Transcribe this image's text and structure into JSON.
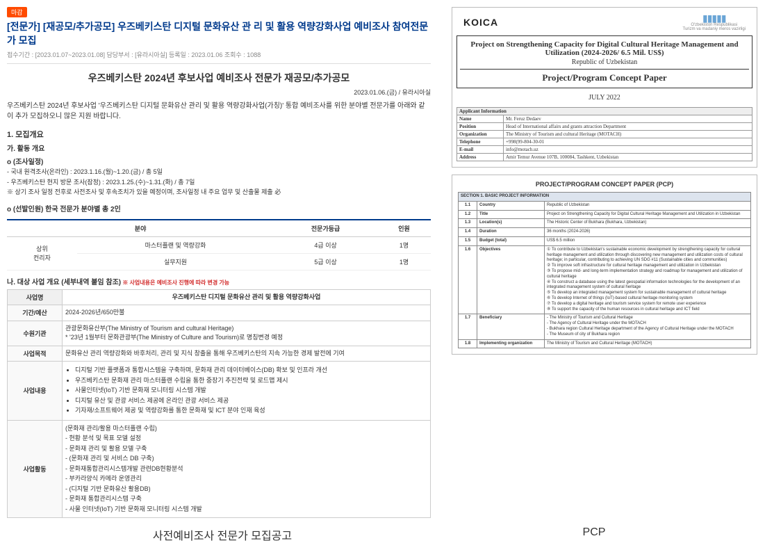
{
  "left": {
    "badge": "마감",
    "title": "[전문가] [재공모/추가공모] 우즈베키스탄 디지털 문화유산 관 리 및 활용 역량강화사업 예비조사 참여전문가 모집",
    "meta": "접수기간 : [2023.01.07~2023.01.08]    담당부서 : [유라시아실]    등록일 : 2023.01.06    조회수 : 1088",
    "heading": "우즈베키스탄 2024년 후보사업 예비조사 전문가 재공모/추가공모",
    "dateRight": "2023.01.06.(금) / 유라시아실",
    "intro": "우즈베키스탄 2024년 후보사업 '우즈베키스탄 디지털 문화유산 관리 및 활용 역량강화사업(가칭)' 통합 예비조사를 위한 분야별 전문가를 아래와 같이 추가 모집하오니 많은 지원 바랍니다.",
    "sec1": "1. 모집개요",
    "sec1a": "가. 활동 개요",
    "sec1b": "o (조사일정)",
    "sch1": "- 국내 원격조사(온라인) : 2023.1.16.(월)~1.20.(금) / 총 5일",
    "sch2": "- 우즈베키스탄 현지 방문 조사(잠정) : 2023.1.25.(수)~1.31.(화) / 총 7일",
    "sch3": "※ 상기 조사 일정 전후로 사전조사 및 후속조치가 있을 예정이며, 조사일정 내 주요 업무 및 산출물 제출 必",
    "selLine": "o (선발인원) 한국 전문가 분야별 총 2인",
    "t1": {
      "h1": "분야",
      "h2": "전문가등급",
      "h3": "인원",
      "r1c0": "상위\n컨리자",
      "r1c1": "마스터플랜 및 역량강화",
      "r1c2": "4급 이상",
      "r1c3": "1명",
      "r2c1": "실무지원",
      "r2c2": "5급 이상",
      "r2c3": "1명"
    },
    "sec2": "나. 대상 사업 개요 (세부내역 붙임 참조)",
    "sec2note": " ※ 사업내용은 예비조사 진행에 따라 변경 가능",
    "t2": {
      "hName": "사업명",
      "hNameVal": "우즈베키스탄 디지털 문화유산 관리 및 활용 역량강화사업",
      "hPeriod": "기간/예산",
      "hPeriodVal": "2024-2026년/650만불",
      "hOrg": "수원기관",
      "hOrgVal": "관광문화유산부(The Ministry of Tourism and cultural Heritage)\n* '23년 1월부터 문화관광부(The Ministry of Culture and Tourism)로 명칭변경 예정",
      "hPurpose": "사업목적",
      "hPurposeVal": "문화유산 관리 역량강화와 바후처리, 관리 및 지식 창출을 통해 우즈베키스탄의 지속 가능한 경제 발전에 기여",
      "hContent": "사업내용",
      "content": [
        "디지털 기반 플랫폼과 통합시스템을 구축하며, 문화재 관리 데이터베이스(DB) 확보 및 인프라 개선",
        "우즈베키스탄 문화재 관리 마스터플랜 수립을 통한 중장기 추진전략 및 로드맵 제시",
        "사물인터넷(IoT) 기반 문화재 모니터링 시스템 개발",
        "디지털 유산 및 관광 서비스 제공에 온라인 관광 서비스 제공",
        "기자재/소프트웨어 제공 및 역량강화를 통한 문화재 및 ICT 분야 인재 육성"
      ],
      "hAct": "사업활동",
      "act": [
        "(문화재 관리/활용 마스터플랜 수립)",
        "- 현황 분석 및 목표 모델 설정",
        "- 문화재 관리 및 활용 모델 구축",
        "- (문화재 관리 및 서비스 DB 구축)",
        "- 문화재통합관리시스템개발 관련DB현황분석",
        "- 부카라양식 카메라 운영관리",
        "- (디지털 기반 문화유산 활용DB)",
        "- 문화재 통합관리시스템 구축",
        "- 사물 인터넷(IoT) 기반 문화재 모니터링 시스템 개발"
      ]
    }
  },
  "right": {
    "koica": "KOICA",
    "uzb1": "O'zbekiston Respublikasi",
    "uzb2": "Turizm va madaniy meros vazirligi",
    "projLine1": "Project on Strengthening Capacity for Digital Cultural Heritage Management and Utilization (2024-2026/ 6.5 Mil. US$)",
    "projLine2": "Republic of Uzbekistan",
    "projLine3": "Project/Program Concept Paper",
    "july": "JULY  2022",
    "appHeader": "Applicant Information",
    "info": {
      "name": "Name",
      "nameV": "Mr. Feruz Dedaev",
      "pos": "Position",
      "posV": "Head of International affairs and grants attraction Department",
      "org": "Organization",
      "orgV": "The Ministry of Tourism and cultural Heritage (MOTACH)",
      "tel": "Telephone",
      "telV": "+998(99-804-30-01",
      "email": "E-mail",
      "emailV": "info@motach.uz",
      "addr": "Address",
      "addrV": "Amir Temur Avenue 107B, 100084, Tashkent, Uzbekistan"
    },
    "pcpHeading": "PROJECT/PROGRAM CONCEPT PAPER (PCP)",
    "pcpSection": "SECTION 1. BASIC PROJECT INFORMATION",
    "pcp": {
      "r1n": "1.1",
      "r1l": "Country",
      "r1v": "Republic of Uzbekistan",
      "r2n": "1.2",
      "r2l": "Title",
      "r2v": "Project on Strengthening Capacity for Digital Cultural Heritage Management and Utilization in Uzbekistan",
      "r3n": "1.3",
      "r3l": "Location(s)",
      "r3v": "The Historic Center of Bukhara (Bukhara, Uzbekistan)",
      "r4n": "1.4",
      "r4l": "Duration",
      "r4v": "36 months (2024-2026)",
      "r5n": "1.5",
      "r5l": "Budget (total)",
      "r5v": "US$ 6.5 million",
      "r6n": "1.6",
      "r6l": "Objectives",
      "r6v": "① To contribute to Uzbekistan's sustainable economic development by strengthening capacity for cultural heritage management and utilization through discovering new management and utilization costs of cultural heritage; in particular, contributing to achieving UN SDG #11 (Sustainable cities and communities)\n② To improve soft infrastructure for cultural heritage management and utilization in Uzbekistan\n③ To propose mid- and long-term implementation strategy and roadmap for management and utilization of cultural heritage\n④ To construct a database using the latest geospatial information technologies for the development of an integrated management system of cultural heritage\n⑤ To develop an integrated management system for sustainable management of cultural heritage\n⑥ To develop Internet of things (IoT)-based cultural heritage monitoring system\n⑦ To develop a digital heritage and tourism service system for remote user experience\n⑧ To support the capacity of the human resources in cultural heritage and ICT field",
      "r7n": "1.7",
      "r7l": "Beneficiary",
      "r7v": "- The Ministry of Tourism and Cultural Heritage\n- The Agency of Cultural Heritage under the MOTACH\n- Bukhara region Cultural Heritage department of the Agency of Cultural Heritage under the MOTACH\n- The Museum of city of Bukhara region",
      "r8n": "1.8",
      "r8l": "Implementing organization",
      "r8v": "The Ministry of Tourism and Cultural Heritage (MOTACH)"
    }
  },
  "captions": {
    "left": "사전예비조사 전문가 모집공고",
    "right": "PCP"
  }
}
